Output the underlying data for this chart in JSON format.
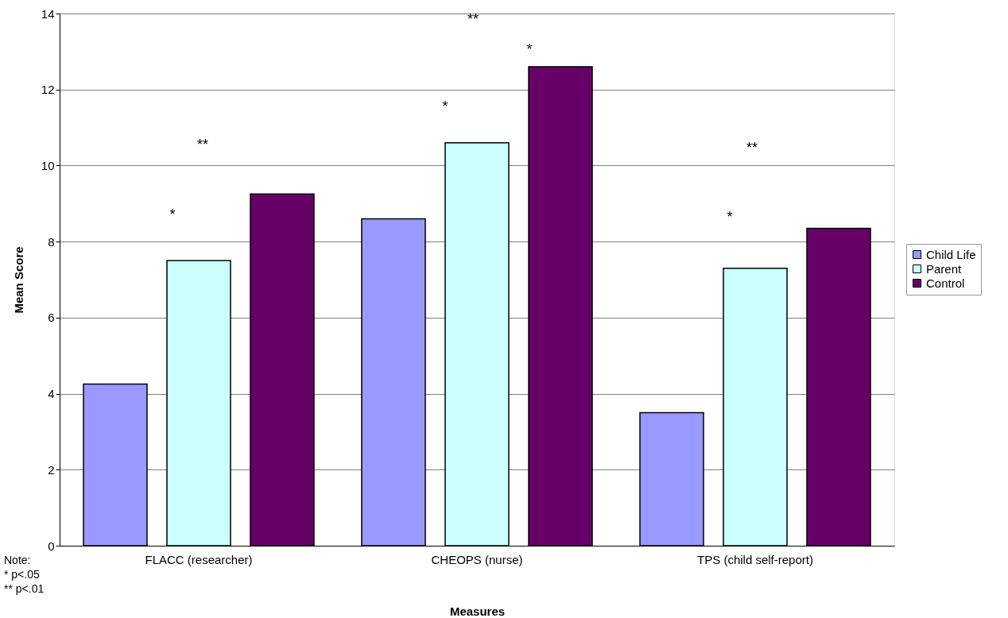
{
  "chart_data": {
    "type": "bar",
    "xlabel": "Measures",
    "ylabel": "Mean Score",
    "categories": [
      "FLACC (researcher)",
      "CHEOPS (nurse)",
      "TPS (child self-report)"
    ],
    "series": [
      {
        "name": "Child Life",
        "color": "#9999ff",
        "values": [
          4.25,
          8.6,
          3.5
        ]
      },
      {
        "name": "Parent",
        "color": "#ccffff",
        "values": [
          7.5,
          10.6,
          7.3
        ]
      },
      {
        "name": "Control",
        "color": "#660066",
        "values": [
          9.25,
          12.6,
          8.35
        ]
      }
    ],
    "ylim": [
      0,
      14
    ],
    "yticks": [
      0,
      2,
      4,
      6,
      8,
      10,
      12,
      14
    ],
    "grid": "y",
    "legend": "right",
    "annotations": [
      "*",
      "**",
      "*",
      "*",
      "**",
      "*",
      "**",
      "Note:\n* p<.05\n** p<.01"
    ]
  }
}
